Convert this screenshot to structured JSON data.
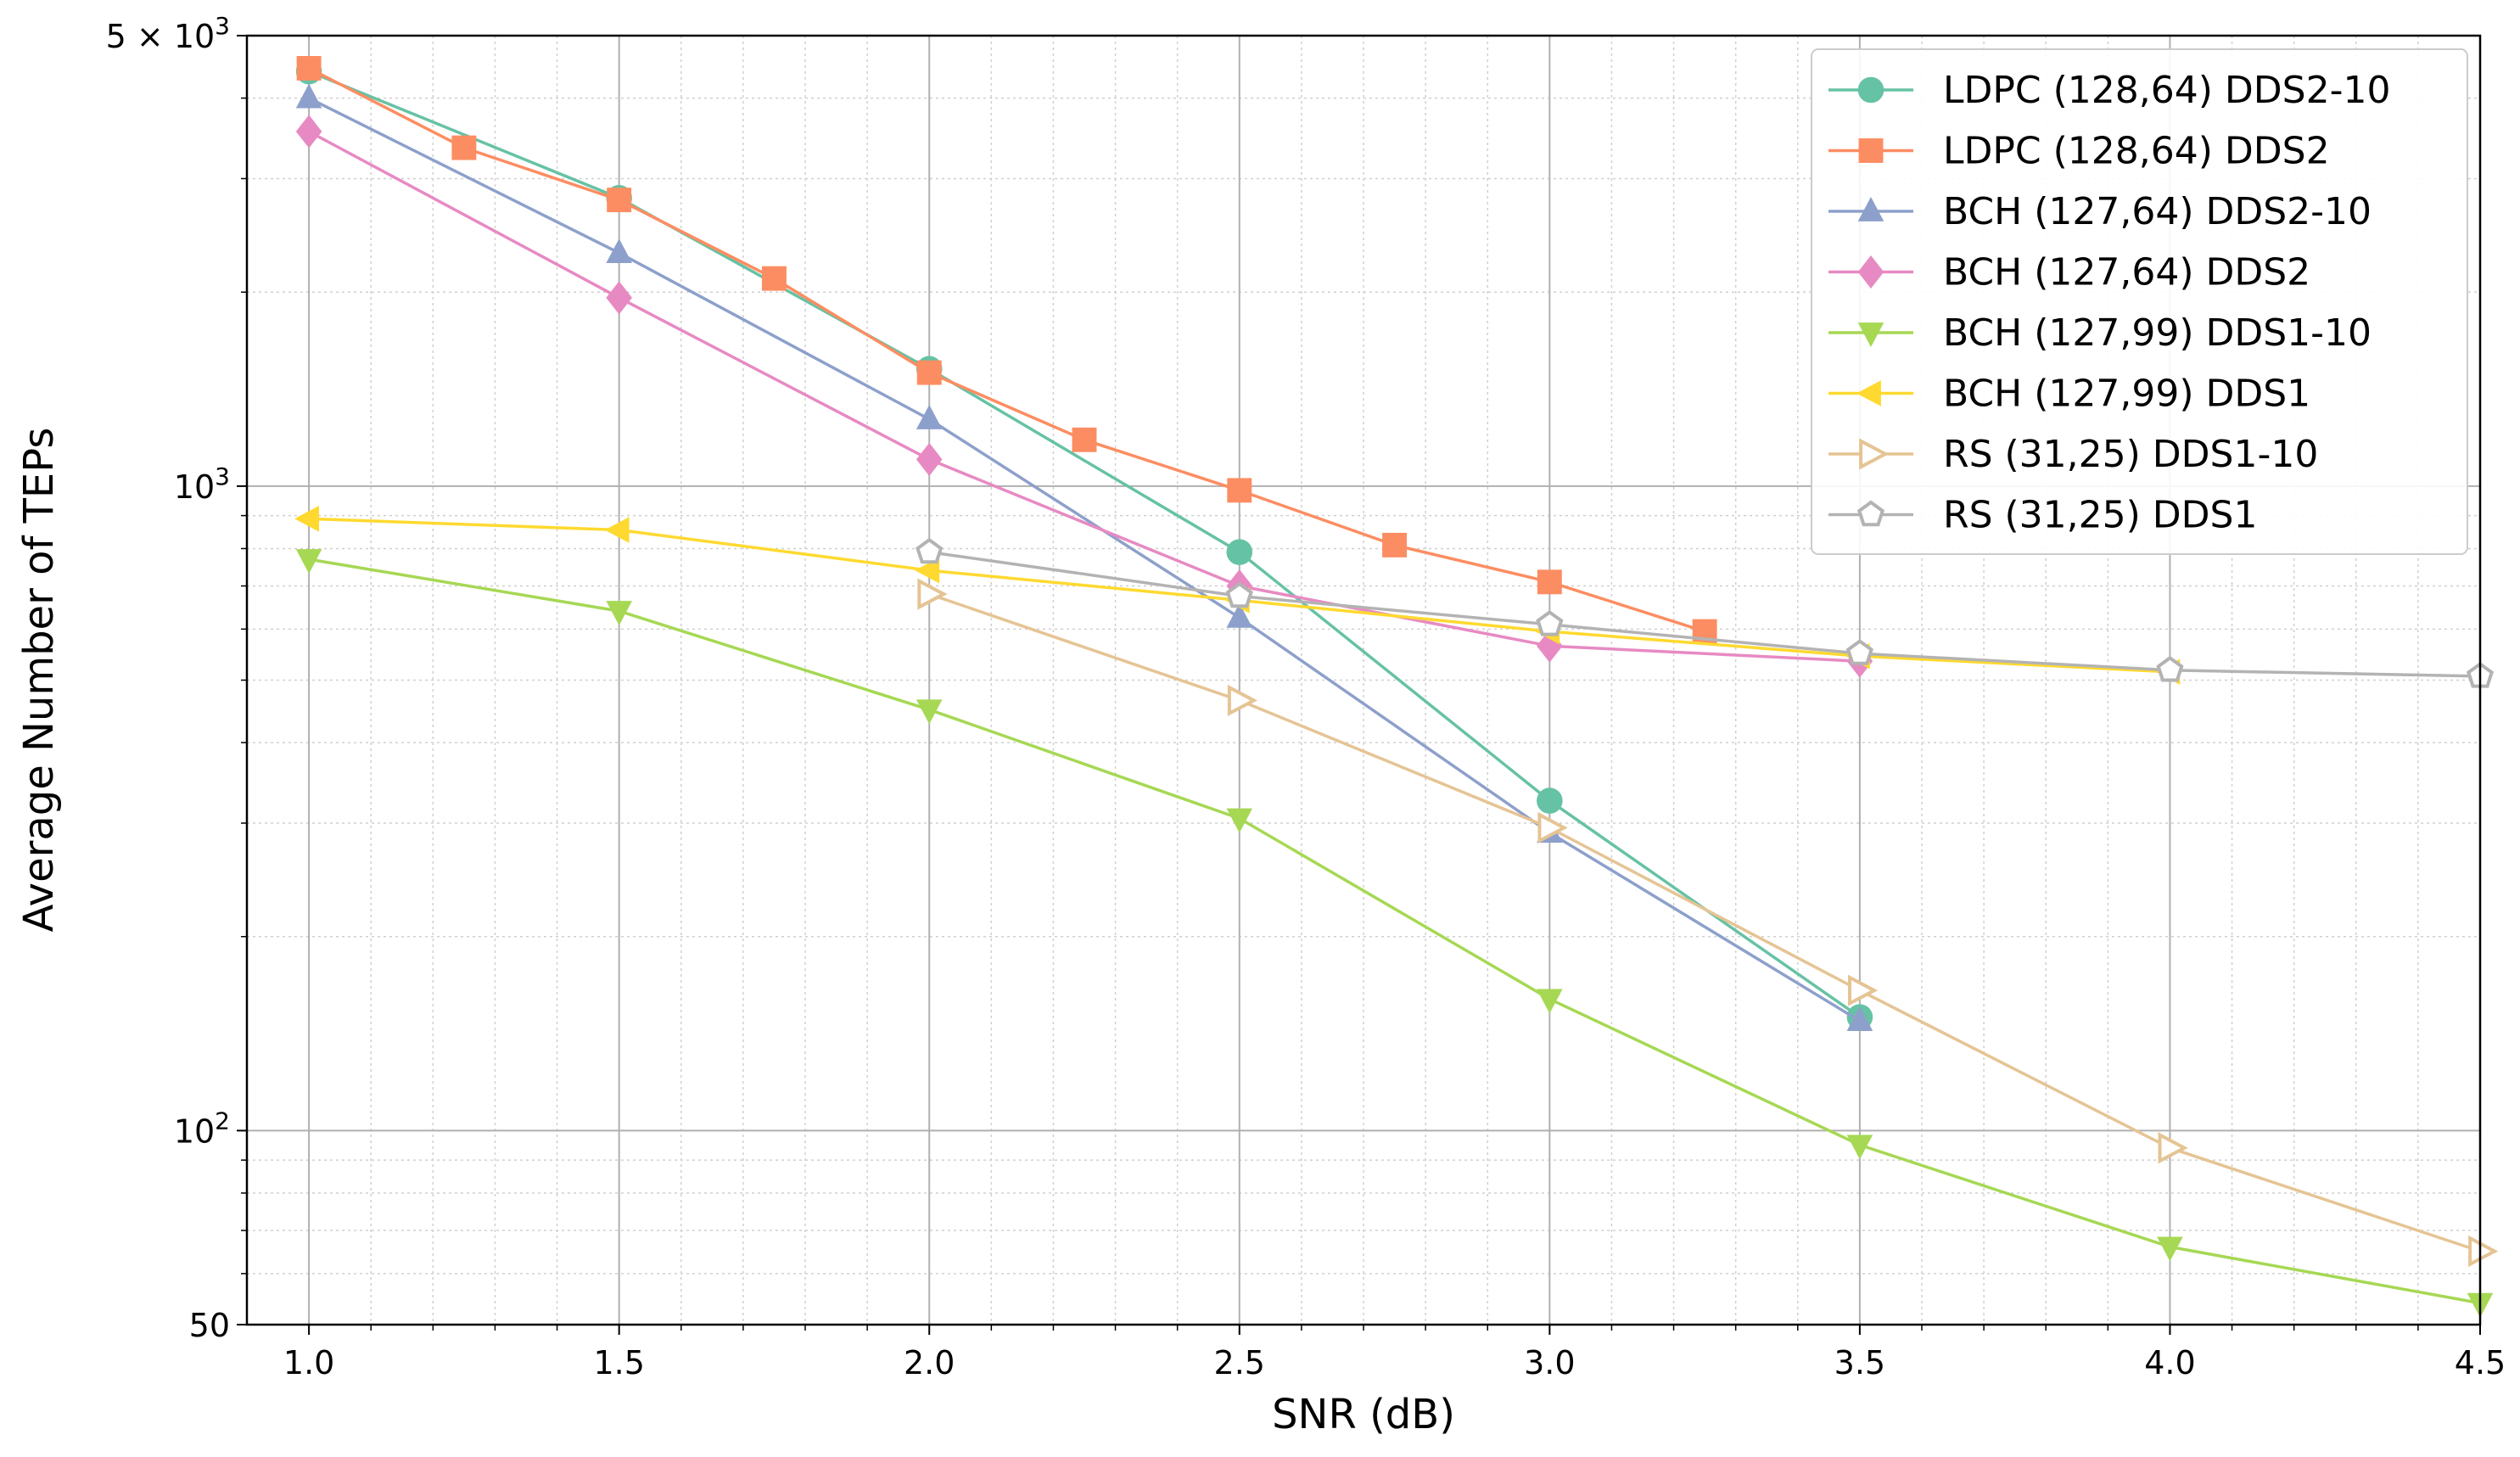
{
  "chart_data": {
    "type": "line",
    "title": "",
    "xlabel": "SNR (dB)",
    "ylabel": "Average Number of TEPs",
    "xlim": [
      0.9,
      4.5
    ],
    "ylim": [
      50,
      5000
    ],
    "yscale": "log",
    "grid": true,
    "legend_position": "top-right",
    "x_ticks": [
      1.0,
      1.5,
      2.0,
      2.5,
      3.0,
      3.5,
      4.0,
      4.5
    ],
    "x_tick_labels": [
      "1.0",
      "1.5",
      "2.0",
      "2.5",
      "3.0",
      "3.5",
      "4.0",
      "4.5"
    ],
    "y_ticks": [
      {
        "value": 5000,
        "base": "5 × 10",
        "exp": "3"
      },
      {
        "value": 1000,
        "base": "10",
        "exp": "3"
      },
      {
        "value": 100,
        "base": "10",
        "exp": "2"
      },
      {
        "value": 50,
        "base": "50",
        "exp": ""
      }
    ],
    "series": [
      {
        "name": "LDPC (128,64) DDS2-10",
        "color": "#66c2a5",
        "marker": "circle",
        "x": [
          1.0,
          1.5,
          2.0,
          2.5,
          3.0,
          3.5
        ],
        "values": [
          4400,
          2800,
          1520,
          790,
          325,
          150
        ]
      },
      {
        "name": "LDPC (128,64) DDS2",
        "color": "#fc8d62",
        "marker": "square",
        "x": [
          1.0,
          1.25,
          1.5,
          1.75,
          2.0,
          2.25,
          2.5,
          2.75,
          3.0,
          3.25
        ],
        "values": [
          4450,
          3350,
          2780,
          2100,
          1500,
          1180,
          985,
          810,
          710,
          595
        ]
      },
      {
        "name": "BCH (127,64) DDS2-10",
        "color": "#8da0cb",
        "marker": "triangle-up",
        "x": [
          1.0,
          1.5,
          2.0,
          2.5,
          3.0,
          3.5
        ],
        "values": [
          4000,
          2300,
          1270,
          625,
          290,
          148
        ]
      },
      {
        "name": "BCH (127,64) DDS2",
        "color": "#e78ac3",
        "marker": "diamond",
        "x": [
          1.0,
          1.5,
          2.0,
          2.5,
          3.0,
          3.5
        ],
        "values": [
          3550,
          1960,
          1100,
          700,
          565,
          535
        ]
      },
      {
        "name": "BCH (127,99) DDS1-10",
        "color": "#a6d854",
        "marker": "triangle-down",
        "x": [
          1.0,
          1.5,
          2.0,
          2.5,
          3.0,
          3.5,
          4.0,
          4.5
        ],
        "values": [
          770,
          640,
          450,
          305,
          160,
          95,
          66,
          54
        ]
      },
      {
        "name": "BCH (127,99) DDS1",
        "color": "#ffd92f",
        "marker": "triangle-left",
        "x": [
          1.0,
          1.5,
          2.0,
          2.5,
          3.0,
          3.5,
          4.0
        ],
        "values": [
          890,
          855,
          740,
          665,
          595,
          545,
          515
        ]
      },
      {
        "name": "RS (31,25) DDS1-10",
        "color": "#e5c494",
        "marker": "triangle-right",
        "x": [
          2.0,
          2.5,
          3.0,
          3.5,
          4.0,
          4.5
        ],
        "values": [
          680,
          465,
          295,
          165,
          94,
          65
        ]
      },
      {
        "name": "RS (31,25) DDS1",
        "color": "#b3b3b3",
        "marker": "pentagon",
        "x": [
          2.0,
          2.5,
          3.0,
          3.5,
          4.0,
          4.5
        ],
        "values": [
          790,
          675,
          610,
          550,
          518,
          507
        ]
      }
    ]
  }
}
